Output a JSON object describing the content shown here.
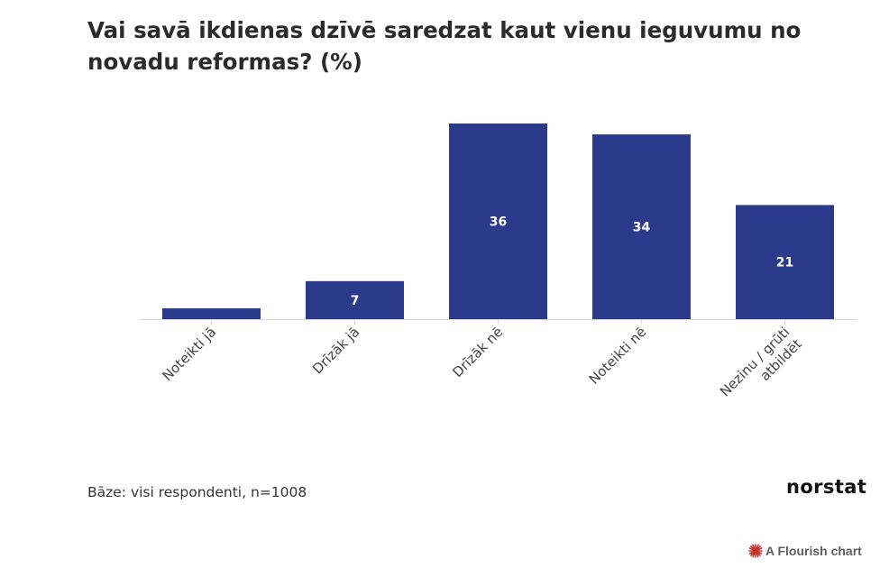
{
  "title": "Vai savā ikdienas dzīvē saredzat kaut vienu ieguvumu no novadu reformas? (%)",
  "footnote": "Bāze: visi respondenti, n=1008",
  "logo": "norstat",
  "credit": "A Flourish chart",
  "colors": {
    "bar": "#2b3a8b",
    "credit_icon": "#c4342b"
  },
  "chart_data": {
    "type": "bar",
    "title": "Vai savā ikdienas dzīvē saredzat kaut vienu ieguvumu no novadu reformas? (%)",
    "categories": [
      "Noteikti jā",
      "Drīzāk jā",
      "Drīzāk nē",
      "Noteikti nē",
      "Nezinu / grūti atbildēt"
    ],
    "category_lines": [
      [
        "Noteikti jā"
      ],
      [
        "Drīzāk jā"
      ],
      [
        "Drīzāk nē"
      ],
      [
        "Noteikti nē"
      ],
      [
        "Nezinu / grūti",
        "atbildēt"
      ]
    ],
    "values": [
      2,
      7,
      36,
      34,
      21
    ],
    "data_labels": [
      "",
      "7",
      "36",
      "34",
      "21"
    ],
    "ylim": [
      0,
      36
    ],
    "grid": false,
    "xlabel": "",
    "ylabel": ""
  }
}
